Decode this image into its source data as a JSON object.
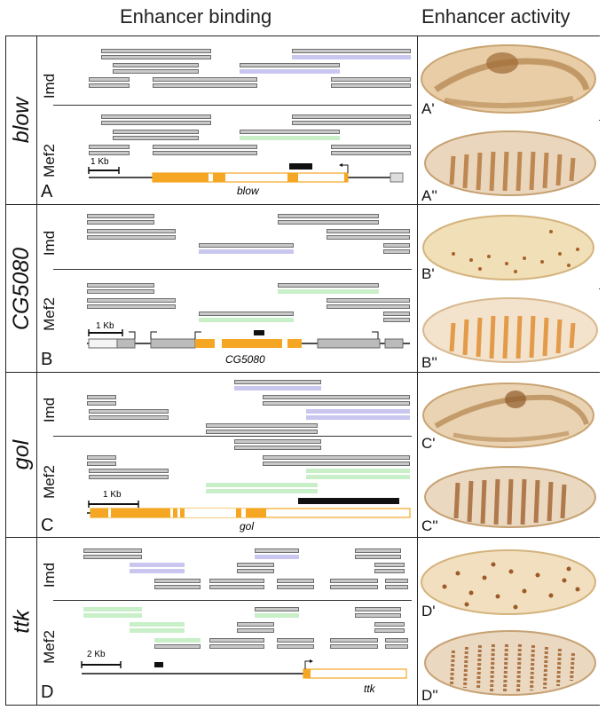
{
  "headers": {
    "binding": "Enhancer binding",
    "activity": "Enhancer activity"
  },
  "colors": {
    "orange": "#f5a623",
    "gray": "#c8c8c8",
    "purple": "#c9c6ef",
    "green": "#c8efc8"
  },
  "panels": [
    {
      "id": "A",
      "gene": "blow",
      "track1": "Imd",
      "track2": "Mef2",
      "panel_label": "A",
      "scale": "1 Kb",
      "gene_label": "blow",
      "emb1": "A'",
      "emb2": "A''"
    },
    {
      "id": "B",
      "gene": "CG5080",
      "track1": "Imd",
      "track2": "Mef2",
      "panel_label": "B",
      "scale": "1 Kb",
      "gene_label": "CG5080",
      "emb1": "B'",
      "emb2": "B''"
    },
    {
      "id": "C",
      "gene": "gol",
      "track1": "Imd",
      "track2": "Mef2",
      "panel_label": "C",
      "scale": "1 Kb",
      "gene_label": "gol",
      "emb1": "C'",
      "emb2": "C''"
    },
    {
      "id": "D",
      "gene": "ttk",
      "track1": "Imd",
      "track2": "Mef2",
      "panel_label": "D",
      "scale": "2 Kb",
      "gene_label": "ttk",
      "emb1": "D'",
      "emb2": "D''"
    }
  ]
}
